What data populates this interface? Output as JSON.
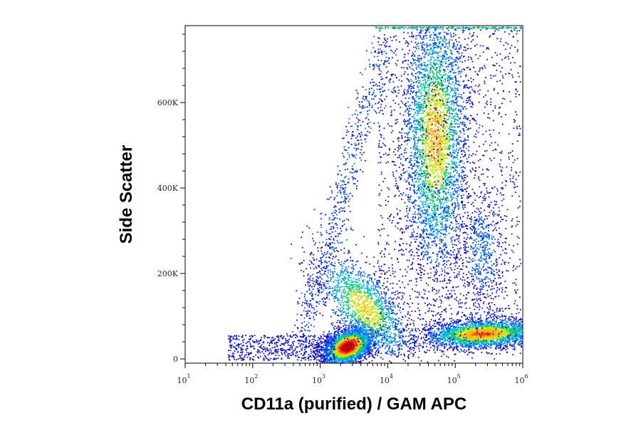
{
  "chart_data": {
    "type": "scatter",
    "title": "",
    "xlabel": "CD11a (purified) / GAM APC",
    "ylabel": "Side Scatter",
    "x_scale": "log",
    "xlim": [
      10,
      1000000
    ],
    "ylim": [
      0,
      780000
    ],
    "x_ticks": [
      {
        "value": 10,
        "base": "10",
        "exp": "1"
      },
      {
        "value": 100,
        "base": "10",
        "exp": "2"
      },
      {
        "value": 1000,
        "base": "10",
        "exp": "3"
      },
      {
        "value": 10000,
        "base": "10",
        "exp": "4"
      },
      {
        "value": 100000,
        "base": "10",
        "exp": "5"
      },
      {
        "value": 1000000,
        "base": "10",
        "exp": "6"
      }
    ],
    "y_ticks": [
      {
        "value": 0,
        "label": "0"
      },
      {
        "value": 200000,
        "label": "200K"
      },
      {
        "value": 400000,
        "label": "400K"
      },
      {
        "value": 600000,
        "label": "600K"
      }
    ],
    "grid": false,
    "legend": "none",
    "density_colors": [
      "#1010c8",
      "#0066ff",
      "#00b4dc",
      "#10c878",
      "#c8e614",
      "#ffb400",
      "#ff3c00",
      "#c80000"
    ],
    "populations": [
      {
        "center_x": 2500,
        "center_y": 30000,
        "count": 3200,
        "peak_density": 1.0
      },
      {
        "center_x": 4500,
        "center_y": 120000,
        "count": 1600,
        "peak_density": 0.6
      },
      {
        "center_x": 50000,
        "center_y": 520000,
        "count": 3600,
        "peak_density": 0.65
      },
      {
        "center_x": 250000,
        "center_y": 60000,
        "count": 2800,
        "peak_density": 0.75
      },
      {
        "center_x": 250000,
        "center_y": 250000,
        "count": 500,
        "peak_density": 0.2
      }
    ]
  }
}
